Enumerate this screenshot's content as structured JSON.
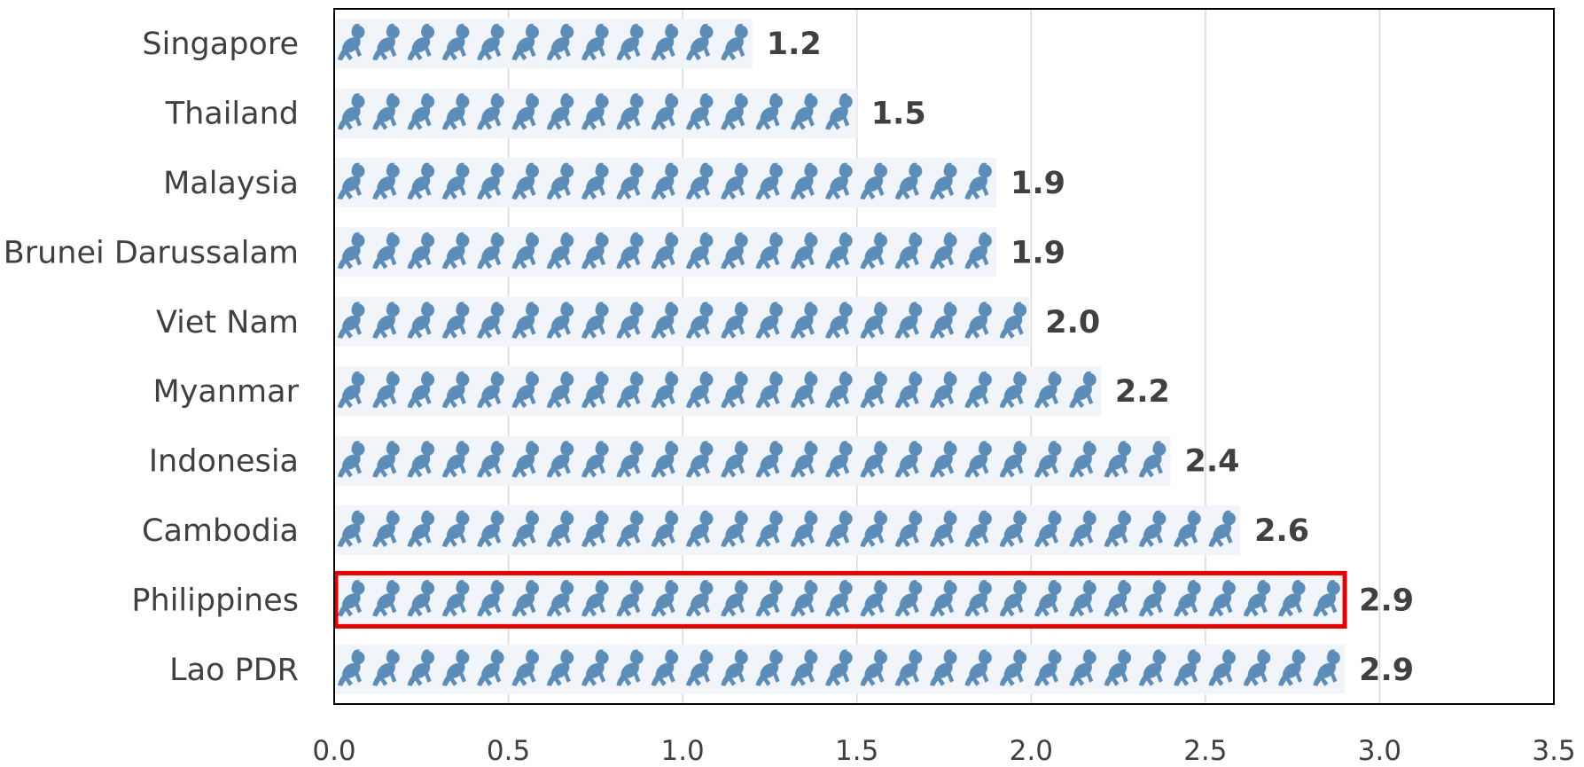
{
  "chart_data": {
    "type": "bar",
    "orientation": "horizontal",
    "categories": [
      "Singapore",
      "Thailand",
      "Malaysia",
      "Brunei Darussalam",
      "Viet Nam",
      "Myanmar",
      "Indonesia",
      "Cambodia",
      "Philippines",
      "Lao PDR"
    ],
    "values": [
      1.2,
      1.5,
      1.9,
      1.9,
      2.0,
      2.2,
      2.4,
      2.6,
      2.9,
      2.9
    ],
    "value_labels": [
      "1.2",
      "1.5",
      "1.9",
      "1.9",
      "2.0",
      "2.2",
      "2.4",
      "2.6",
      "2.9",
      "2.9"
    ],
    "xlim": [
      0,
      3.5
    ],
    "x_ticks": [
      "0.0",
      "0.5",
      "1.0",
      "1.5",
      "2.0",
      "2.5",
      "3.0",
      "3.5"
    ],
    "highlighted_category": "Philippines",
    "grid": "vertical",
    "bar_fill": "pictogram-baby-icon",
    "colors": {
      "bar_icon": "#5b8db8",
      "bar_background": "#f1f5fa",
      "highlight_border": "#e60000",
      "grid": "#d9d9d9",
      "text": "#404040",
      "frame": "#000000"
    }
  }
}
